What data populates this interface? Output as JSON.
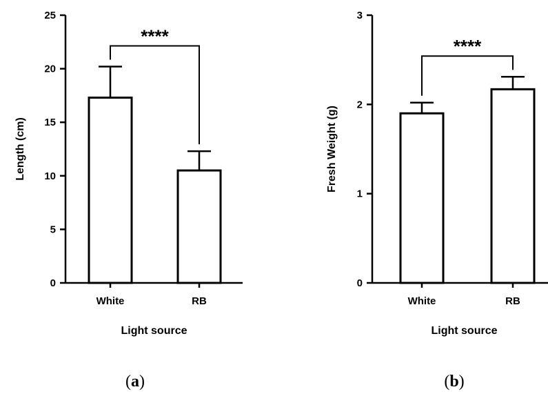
{
  "chart_data": [
    {
      "type": "bar",
      "panel_label": "a",
      "categories": [
        "White",
        "RB"
      ],
      "values": [
        17.3,
        10.5
      ],
      "error_upper": [
        20.2,
        12.3
      ],
      "xlabel": "Light source",
      "ylabel": "Length (cm)",
      "ylim": [
        0,
        25
      ],
      "yticks": [
        0,
        5,
        10,
        15,
        20,
        25
      ],
      "significance": "****",
      "grid": false,
      "bar_fill": "#ffffff",
      "bar_stroke": "#000000"
    },
    {
      "type": "bar",
      "panel_label": "b",
      "categories": [
        "White",
        "RB"
      ],
      "values": [
        1.9,
        2.17
      ],
      "error_upper": [
        2.02,
        2.31
      ],
      "xlabel": "Light source",
      "ylabel": "Fresh Weight (g)",
      "ylim": [
        0,
        3
      ],
      "yticks": [
        0,
        1,
        2,
        3
      ],
      "significance": "****",
      "grid": false,
      "bar_fill": "#ffffff",
      "bar_stroke": "#000000"
    }
  ]
}
